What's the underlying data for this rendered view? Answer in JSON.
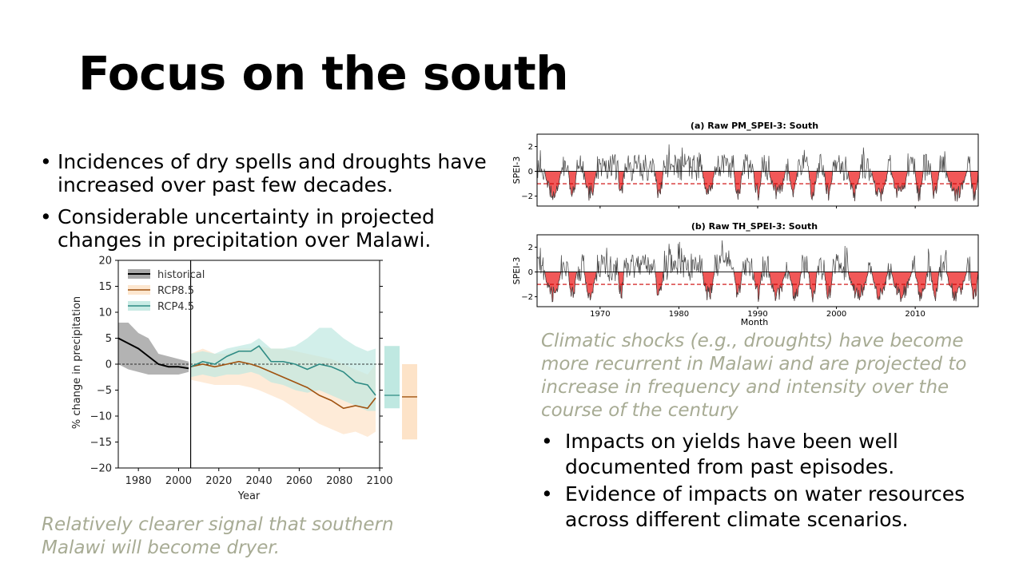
{
  "slide": {
    "title": "Focus on the south",
    "bullets_left": [
      "Incidences of dry spells and droughts have increased over past  few decades.",
      "Considerable uncertainty in projected changes in precipitation over Malawi."
    ],
    "caption_right": "Climatic shocks (e.g., droughts) have become more recurrent in Malawi and are projected to increase in frequency and intensity over the course of the century",
    "bullets_right": [
      "Impacts on yields have been well documented from past episodes.",
      "Evidence of impacts on water resources across different climate scenarios."
    ],
    "caption_left": "Relatively clearer signal that southern Malawi will become dryer."
  },
  "colors": {
    "historical": "#000000",
    "historical_band": "#9a9a9a",
    "rcp85": "#a0520f",
    "rcp85_band": "#fde3c8",
    "rcp45": "#2e8b84",
    "rcp45_band": "#bfe8e1",
    "drought_fill": "#ef3b3b",
    "threshold": "#cc0000"
  },
  "chart_data": [
    {
      "type": "line",
      "title": "",
      "xlabel": "Year",
      "ylabel": "% change in precipitation",
      "xlim": [
        1970,
        2100
      ],
      "ylim": [
        -20,
        20
      ],
      "xticks": [
        1980,
        2000,
        2020,
        2040,
        2060,
        2080,
        2100
      ],
      "yticks": [
        -20,
        -15,
        -10,
        -5,
        0,
        5,
        10,
        15,
        20
      ],
      "legend_position": "top-left",
      "divider_year": 2006,
      "series": [
        {
          "name": "historical",
          "x": [
            1970,
            1975,
            1980,
            1985,
            1990,
            1995,
            2000,
            2005
          ],
          "y": [
            5,
            4,
            3,
            1.5,
            0,
            -0.5,
            -0.5,
            -0.8
          ],
          "lower": [
            0,
            -1,
            -1.5,
            -2,
            -2,
            -2,
            -2,
            -1.5
          ],
          "upper": [
            8,
            8,
            6,
            5,
            2,
            1.5,
            1,
            0.5
          ]
        },
        {
          "name": "RCP8.5",
          "x": [
            2006,
            2012,
            2018,
            2024,
            2030,
            2036,
            2040,
            2046,
            2052,
            2058,
            2064,
            2070,
            2076,
            2082,
            2088,
            2094,
            2098
          ],
          "y": [
            -0.5,
            0,
            -0.5,
            0,
            0.5,
            0,
            -0.5,
            -1.5,
            -2.5,
            -3.5,
            -4.5,
            -6,
            -7,
            -8.5,
            -8,
            -8.5,
            -6.5
          ],
          "lower": [
            -3,
            -3.5,
            -4,
            -4,
            -4,
            -4.5,
            -5,
            -6,
            -7,
            -8.5,
            -10,
            -11.5,
            -12.5,
            -13.5,
            -13,
            -14,
            -13
          ],
          "upper": [
            2,
            3,
            2,
            2,
            3,
            3,
            3.5,
            3,
            3,
            2.5,
            2,
            1.5,
            1,
            0,
            -1,
            -2,
            0
          ]
        },
        {
          "name": "RCP4.5",
          "x": [
            2006,
            2012,
            2018,
            2024,
            2030,
            2036,
            2040,
            2046,
            2052,
            2058,
            2064,
            2070,
            2076,
            2082,
            2088,
            2094,
            2098
          ],
          "y": [
            -0.5,
            0.5,
            0,
            1.5,
            2.5,
            2.5,
            3.5,
            0.5,
            0.5,
            0,
            -1,
            0,
            -0.5,
            -1.5,
            -3.5,
            -4,
            -6
          ],
          "lower": [
            -2.5,
            -2,
            -2.5,
            -2,
            -2,
            -1.5,
            -2,
            -3.5,
            -4,
            -5,
            -5.5,
            -5,
            -6,
            -7,
            -8,
            -9,
            -9
          ],
          "upper": [
            2,
            2.5,
            2,
            3,
            3.5,
            4,
            5,
            3,
            3,
            3.5,
            5,
            7,
            7,
            5,
            3.5,
            2.5,
            3
          ]
        }
      ],
      "end_of_century_bars": [
        {
          "name": "RCP4.5",
          "low": -8.5,
          "high": 3.5,
          "median": -6
        },
        {
          "name": "RCP8.5",
          "low": -14.5,
          "high": 0,
          "median": -6.3
        }
      ]
    },
    {
      "type": "line",
      "title": "(a) Raw PM_SPEI-3: South",
      "ylabel": "SPEI-3",
      "xlim": [
        1962,
        2018
      ],
      "ylim": [
        -2.8,
        3
      ],
      "yticks": [
        -2,
        0,
        2
      ],
      "threshold": -1,
      "drought_periods": [
        [
          1963,
          1965
        ],
        [
          1966,
          1967
        ],
        [
          1968,
          1969.5
        ],
        [
          1972.3,
          1973
        ],
        [
          1977,
          1978
        ],
        [
          1983,
          1984.5
        ],
        [
          1987,
          1988
        ],
        [
          1989.5,
          1990.5
        ],
        [
          1991.5,
          1993.5
        ],
        [
          1994,
          1995
        ],
        [
          1996.5,
          1997.5
        ],
        [
          1998.5,
          1999.5
        ],
        [
          2001.5,
          2003
        ],
        [
          2004.5,
          2006.5
        ],
        [
          2007,
          2009
        ],
        [
          2010,
          2011
        ],
        [
          2012,
          2013
        ],
        [
          2014,
          2016.5
        ],
        [
          2017,
          2018
        ]
      ]
    },
    {
      "type": "line",
      "title": "(b) Raw TH_SPEI-3: South",
      "xlabel": "Month",
      "ylabel": "SPEI-3",
      "xlim": [
        1962,
        2018
      ],
      "ylim": [
        -2.8,
        3
      ],
      "xticks": [
        1970,
        1980,
        1990,
        2000,
        2010
      ],
      "yticks": [
        -2,
        0,
        2
      ],
      "threshold": -1,
      "drought_periods": [
        [
          1963,
          1965
        ],
        [
          1966,
          1967
        ],
        [
          1968,
          1969.5
        ],
        [
          1972.3,
          1973
        ],
        [
          1977,
          1978
        ],
        [
          1983,
          1984.5
        ],
        [
          1987,
          1988
        ],
        [
          1989.5,
          1990.5
        ],
        [
          1991.5,
          1993.5
        ],
        [
          1994,
          1995.5
        ],
        [
          1996.5,
          1997.5
        ],
        [
          1998.5,
          1999.5
        ],
        [
          2001.5,
          2004
        ],
        [
          2004.5,
          2006.5
        ],
        [
          2007,
          2009.5
        ],
        [
          2010,
          2011.5
        ],
        [
          2012,
          2013
        ],
        [
          2014,
          2016.5
        ],
        [
          2017,
          2018
        ]
      ]
    }
  ]
}
